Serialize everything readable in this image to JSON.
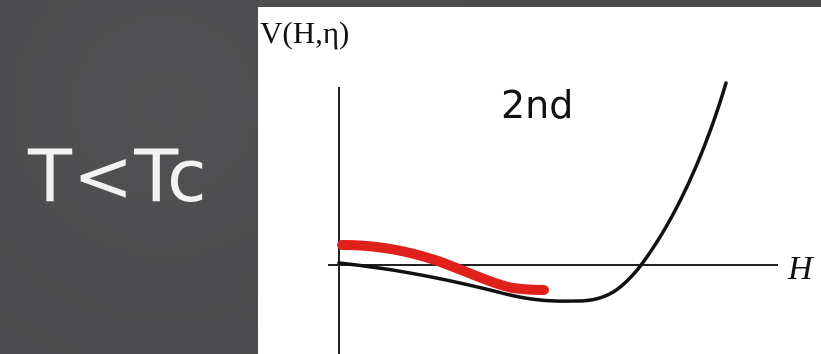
{
  "slide": {
    "label": "T<Tc"
  },
  "figure": {
    "y_label": "V(H,η)",
    "x_label": "H",
    "annotation": "2nd",
    "colors": {
      "potential_curve": "#111111",
      "highlight_curve": "#e0201b",
      "axes": "#222222"
    }
  }
}
